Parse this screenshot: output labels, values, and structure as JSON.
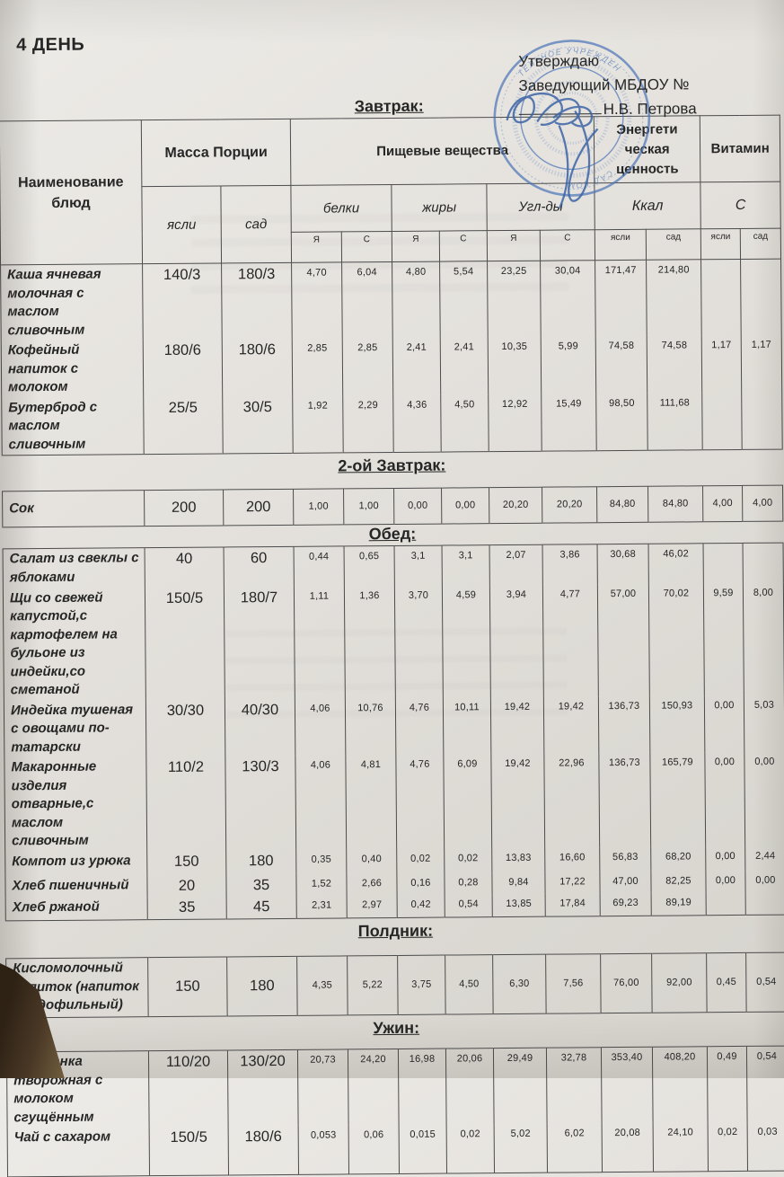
{
  "header": {
    "day_title": "4 ДЕНЬ",
    "approve_line1": "Утверждаю",
    "approve_line2": "Заведующий МБДОУ №",
    "approve_name": "Н.В. Петрова"
  },
  "stamp": {
    "color": "#4a74b8",
    "text_top": "ТЕЛЬНОЕ УЧРЕЖДЕН",
    "text_bottom": "САД КОМ"
  },
  "labels": {
    "name": "Наименование блюд",
    "mass": "Масса Порции",
    "nutrients": "Пищевые вещества",
    "energy": "Энергети ческая ценность",
    "vitamin": "Витамин",
    "yasli": "ясли",
    "sad": "сад",
    "protein": "белки",
    "fat": "жиры",
    "carbs": "Угл-ды",
    "kcal": "Ккал",
    "vit_c": "С",
    "ya": "Я",
    "s": "С"
  },
  "sections": {
    "breakfast": {
      "title": "Завтрак:",
      "rows": [
        [
          "Каша ячневая молочная с маслом сливочным",
          "140/3",
          "180/3",
          "4,70",
          "6,04",
          "4,80",
          "5,54",
          "23,25",
          "30,04",
          "171,47",
          "214,80",
          "",
          ""
        ],
        [
          "Кофейный напиток с молоком",
          "180/6",
          "180/6",
          "2,85",
          "2,85",
          "2,41",
          "2,41",
          "10,35",
          "5,99",
          "74,58",
          "74,58",
          "1,17",
          "1,17"
        ],
        [
          "Бутерброд с маслом сливочным",
          "25/5",
          "30/5",
          "1,92",
          "2,29",
          "4,36",
          "4,50",
          "12,92",
          "15,49",
          "98,50",
          "111,68",
          "",
          ""
        ]
      ]
    },
    "second_breakfast": {
      "title": "2-ой Завтрак:",
      "rows": [
        [
          "Сок",
          "200",
          "200",
          "1,00",
          "1,00",
          "0,00",
          "0,00",
          "20,20",
          "20,20",
          "84,80",
          "84,80",
          "4,00",
          "4,00"
        ]
      ]
    },
    "lunch": {
      "title": "Обед:",
      "rows": [
        [
          "Салат из свеклы с яблоками",
          "40",
          "60",
          "0,44",
          "0,65",
          "3,1",
          "3,1",
          "2,07",
          "3,86",
          "30,68",
          "46,02",
          "",
          ""
        ],
        [
          "Щи со свежей капустой,с картофелем на бульоне из индейки,со сметаной",
          "150/5",
          "180/7",
          "1,11",
          "1,36",
          "3,70",
          "4,59",
          "3,94",
          "4,77",
          "57,00",
          "70,02",
          "9,59",
          "8,00"
        ],
        [
          "Индейка тушеная с овощами по-татарски",
          "30/30",
          "40/30",
          "4,06",
          "10,76",
          "4,76",
          "10,11",
          "19,42",
          "19,42",
          "136,73",
          "150,93",
          "0,00",
          "5,03"
        ],
        [
          "Макаронные изделия отварные,с маслом сливочным",
          "110/2",
          "130/3",
          "4,06",
          "4,81",
          "4,76",
          "6,09",
          "19,42",
          "22,96",
          "136,73",
          "165,79",
          "0,00",
          "0,00"
        ],
        [
          "Компот из урюка",
          "150",
          "180",
          "0,35",
          "0,40",
          "0,02",
          "0,02",
          "13,83",
          "16,60",
          "56,83",
          "68,20",
          "0,00",
          "2,44"
        ],
        [
          "Хлеб пшеничный",
          "20",
          "35",
          "1,52",
          "2,66",
          "0,16",
          "0,28",
          "9,84",
          "17,22",
          "47,00",
          "82,25",
          "0,00",
          "0,00"
        ],
        [
          "Хлеб ржаной",
          "35",
          "45",
          "2,31",
          "2,97",
          "0,42",
          "0,54",
          "13,85",
          "17,84",
          "69,23",
          "89,19",
          "",
          ""
        ]
      ]
    },
    "snack": {
      "title": "Полдник:",
      "rows": [
        [
          "Кисломолочный напиток (напиток ацидофильный)",
          "150",
          "180",
          "4,35",
          "5,22",
          "3,75",
          "4,50",
          "6,30",
          "7,56",
          "76,00",
          "92,00",
          "0,45",
          "0,54"
        ]
      ]
    },
    "dinner": {
      "title": "Ужин:",
      "rows": [
        [
          "Запеканка творожная с молоком сгущённым",
          "110/20",
          "130/20",
          "20,73",
          "24,20",
          "16,98",
          "20,06",
          "29,49",
          "32,78",
          "353,40",
          "408,20",
          "0,49",
          "0,54"
        ],
        [
          "Чай с сахаром",
          "150/5",
          "180/6",
          "0,053",
          "0,06",
          "0,015",
          "0,02",
          "5,02",
          "6,02",
          "20,08",
          "24,10",
          "0,02",
          "0,03"
        ]
      ]
    }
  }
}
